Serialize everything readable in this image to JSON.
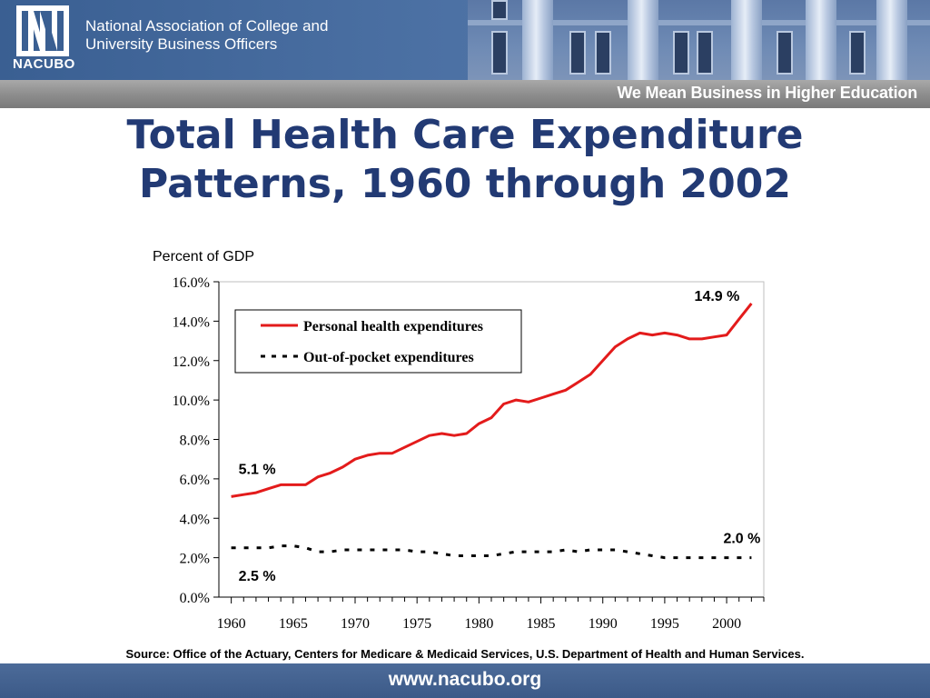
{
  "header": {
    "logo_text": "NACUBO",
    "org_name_line1": "National Association of College and",
    "org_name_line2": "University Business Officers",
    "tagline": "We Mean Business in Higher Education"
  },
  "slide": {
    "title_line1": "Total Health Care Expenditure",
    "title_line2": "Patterns, 1960 through 2002",
    "source": "Source: Office of the Actuary, Centers for Medicare & Medicaid Services, U.S. Department of Health and Human Services."
  },
  "footer": {
    "url": "www.nacubo.org"
  },
  "colors": {
    "header_blue": "#3a5f92",
    "title_navy": "#223a74",
    "series_red": "#e31b1b",
    "series_black": "#000000"
  },
  "chart_data": {
    "type": "line",
    "ylabel": "Percent of GDP",
    "xlabel": "",
    "ylim": [
      0,
      16
    ],
    "xlim": [
      1960,
      2002
    ],
    "yticks": [
      "0.0%",
      "2.0%",
      "4.0%",
      "6.0%",
      "8.0%",
      "10.0%",
      "12.0%",
      "14.0%",
      "16.0%"
    ],
    "ytick_values": [
      0,
      2,
      4,
      6,
      8,
      10,
      12,
      14,
      16
    ],
    "xticks": [
      "1960",
      "1965",
      "1970",
      "1975",
      "1980",
      "1985",
      "1990",
      "1995",
      "2000"
    ],
    "xtick_values": [
      1960,
      1965,
      1970,
      1975,
      1980,
      1985,
      1990,
      1995,
      2000
    ],
    "legend_position": "top-left",
    "grid": false,
    "x": [
      1960,
      1961,
      1962,
      1963,
      1964,
      1965,
      1966,
      1967,
      1968,
      1969,
      1970,
      1971,
      1972,
      1973,
      1974,
      1975,
      1976,
      1977,
      1978,
      1979,
      1980,
      1981,
      1982,
      1983,
      1984,
      1985,
      1986,
      1987,
      1988,
      1989,
      1990,
      1991,
      1992,
      1993,
      1994,
      1995,
      1996,
      1997,
      1998,
      1999,
      2000,
      2001,
      2002
    ],
    "series": [
      {
        "name": "Personal health expenditures",
        "style": "solid",
        "color": "#e31b1b",
        "values": [
          5.1,
          5.2,
          5.3,
          5.5,
          5.7,
          5.7,
          5.7,
          6.1,
          6.3,
          6.6,
          7.0,
          7.2,
          7.3,
          7.3,
          7.6,
          7.9,
          8.2,
          8.3,
          8.2,
          8.3,
          8.8,
          9.1,
          9.8,
          10.0,
          9.9,
          10.1,
          10.3,
          10.5,
          10.9,
          11.3,
          12.0,
          12.7,
          13.1,
          13.4,
          13.3,
          13.4,
          13.3,
          13.1,
          13.1,
          13.2,
          13.3,
          14.1,
          14.9
        ]
      },
      {
        "name": "Out-of-pocket expenditures",
        "style": "dashed",
        "color": "#000000",
        "values": [
          2.5,
          2.5,
          2.5,
          2.5,
          2.6,
          2.6,
          2.5,
          2.3,
          2.3,
          2.4,
          2.4,
          2.4,
          2.4,
          2.4,
          2.4,
          2.3,
          2.3,
          2.2,
          2.1,
          2.1,
          2.1,
          2.1,
          2.2,
          2.3,
          2.3,
          2.3,
          2.3,
          2.4,
          2.3,
          2.4,
          2.4,
          2.4,
          2.3,
          2.2,
          2.1,
          2.0,
          2.0,
          2.0,
          2.0,
          2.0,
          2.0,
          2.0,
          2.0
        ]
      }
    ],
    "annotations": [
      {
        "text": "5.1 %",
        "x": 1960,
        "y": 5.1,
        "series": 0
      },
      {
        "text": "14.9 %",
        "x": 2002,
        "y": 14.9,
        "series": 0
      },
      {
        "text": "2.5 %",
        "x": 1960,
        "y": 2.5,
        "series": 1
      },
      {
        "text": "2.0 %",
        "x": 2002,
        "y": 2.0,
        "series": 1
      }
    ]
  }
}
